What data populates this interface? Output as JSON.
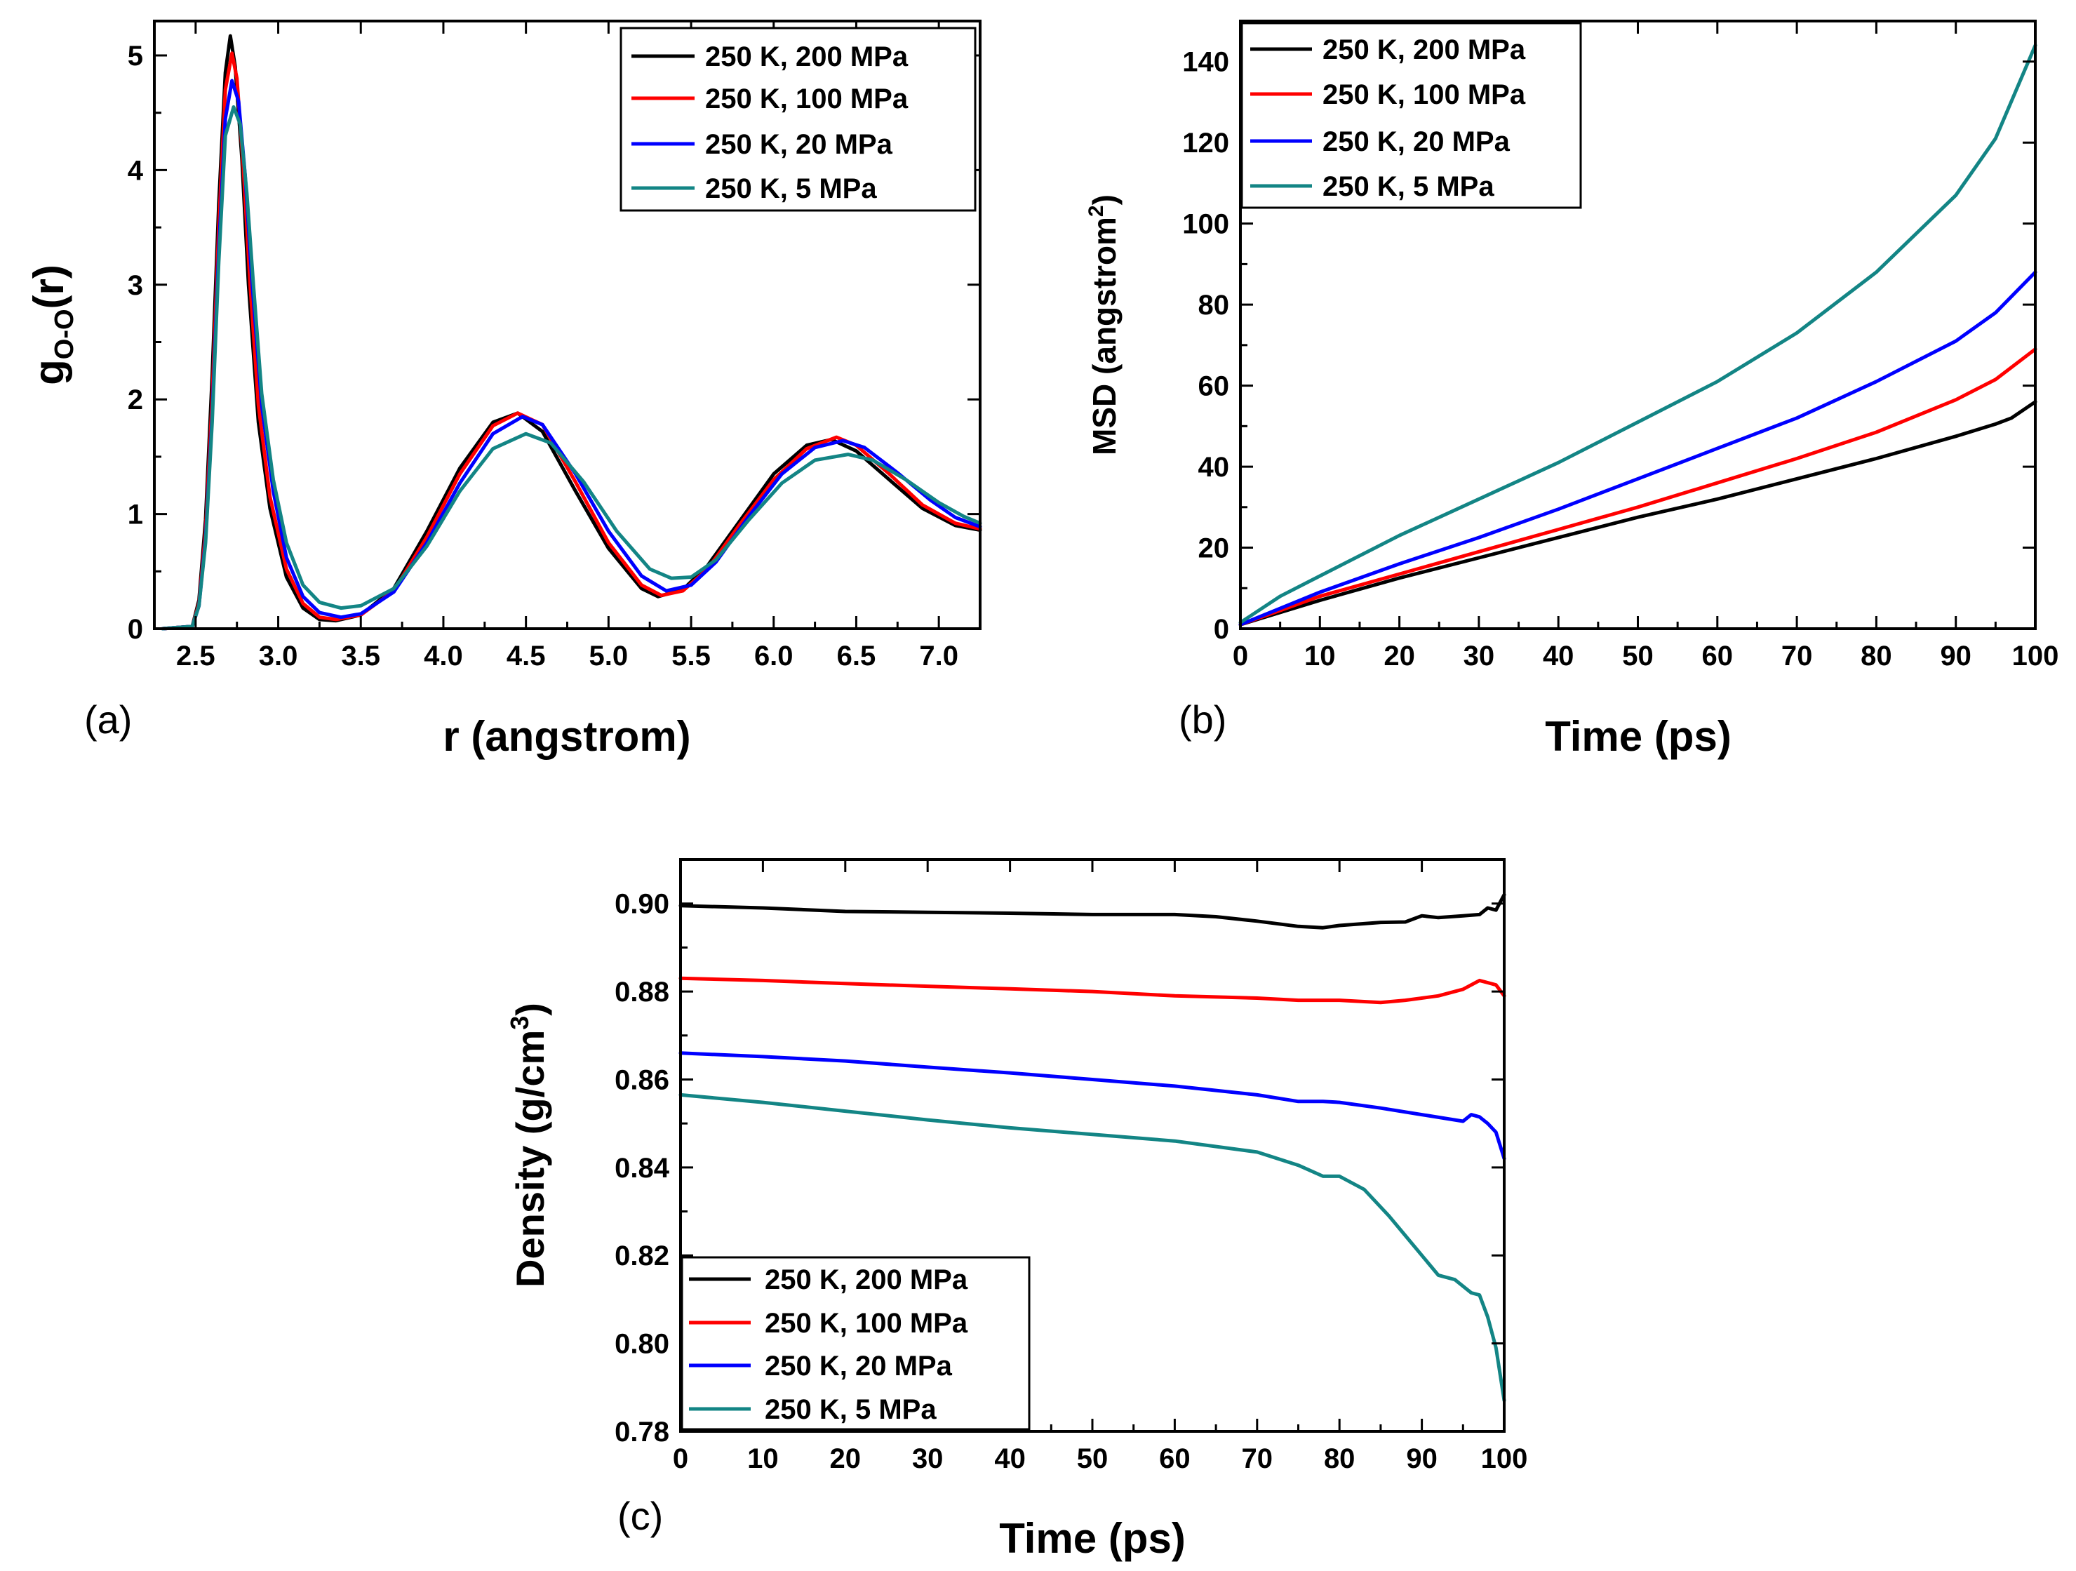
{
  "colors": {
    "s200": "#000000",
    "s100": "#ff0000",
    "s20": "#0000ff",
    "s5": "#138585"
  },
  "chart_data": [
    {
      "id": "a",
      "type": "line",
      "panel_label": "(a)",
      "xlabel": "r (angstrom)",
      "ylabel_main": "g",
      "ylabel_sub": "O-O",
      "ylabel_tail": "(r)",
      "xlim": [
        2.25,
        7.25
      ],
      "ylim": [
        0,
        5.3
      ],
      "xticks": [
        "2.5",
        "3.0",
        "3.5",
        "4.0",
        "4.5",
        "5.0",
        "5.5",
        "6.0",
        "6.5",
        "7.0"
      ],
      "yticks": [
        "0",
        "1",
        "2",
        "3",
        "4",
        "5"
      ],
      "legend_position": "top-right",
      "series": [
        {
          "name": "250 K, 200 MPa",
          "color_key": "s200",
          "x": [
            2.3,
            2.48,
            2.52,
            2.56,
            2.6,
            2.64,
            2.68,
            2.71,
            2.74,
            2.78,
            2.82,
            2.88,
            2.95,
            3.05,
            3.15,
            3.25,
            3.35,
            3.5,
            3.7,
            3.9,
            4.1,
            4.3,
            4.45,
            4.6,
            4.8,
            5.0,
            5.2,
            5.3,
            5.45,
            5.6,
            5.8,
            6.0,
            6.2,
            6.35,
            6.5,
            6.7,
            6.9,
            7.1,
            7.25
          ],
          "y": [
            0,
            0.02,
            0.25,
            0.95,
            2.2,
            3.7,
            4.85,
            5.17,
            4.9,
            4.1,
            3.0,
            1.8,
            1.05,
            0.45,
            0.18,
            0.08,
            0.07,
            0.12,
            0.35,
            0.85,
            1.4,
            1.8,
            1.88,
            1.72,
            1.2,
            0.7,
            0.35,
            0.28,
            0.34,
            0.55,
            0.95,
            1.35,
            1.6,
            1.65,
            1.55,
            1.3,
            1.05,
            0.9,
            0.86
          ]
        },
        {
          "name": "250 K, 100 MPa",
          "color_key": "s100",
          "x": [
            2.3,
            2.48,
            2.52,
            2.56,
            2.6,
            2.64,
            2.68,
            2.72,
            2.75,
            2.79,
            2.83,
            2.88,
            2.95,
            3.05,
            3.15,
            3.25,
            3.35,
            3.5,
            3.7,
            3.9,
            4.1,
            4.3,
            4.45,
            4.6,
            4.8,
            5.0,
            5.2,
            5.32,
            5.45,
            5.6,
            5.8,
            6.0,
            6.2,
            6.38,
            6.5,
            6.7,
            6.9,
            7.1,
            7.25
          ],
          "y": [
            0,
            0.02,
            0.22,
            0.85,
            2.0,
            3.5,
            4.7,
            5.02,
            4.8,
            4.0,
            3.0,
            1.95,
            1.15,
            0.52,
            0.22,
            0.1,
            0.08,
            0.12,
            0.33,
            0.8,
            1.35,
            1.77,
            1.88,
            1.78,
            1.28,
            0.75,
            0.38,
            0.29,
            0.33,
            0.52,
            0.92,
            1.3,
            1.57,
            1.67,
            1.6,
            1.35,
            1.08,
            0.92,
            0.87
          ]
        },
        {
          "name": "250 K, 20 MPa",
          "color_key": "s20",
          "x": [
            2.3,
            2.48,
            2.52,
            2.56,
            2.6,
            2.64,
            2.68,
            2.72,
            2.76,
            2.8,
            2.84,
            2.9,
            2.97,
            3.05,
            3.15,
            3.25,
            3.38,
            3.5,
            3.7,
            3.9,
            4.1,
            4.3,
            4.48,
            4.6,
            4.8,
            5.0,
            5.2,
            5.35,
            5.5,
            5.65,
            5.85,
            6.05,
            6.25,
            6.42,
            6.55,
            6.75,
            6.95,
            7.1,
            7.25
          ],
          "y": [
            0,
            0.02,
            0.2,
            0.78,
            1.85,
            3.3,
            4.45,
            4.78,
            4.6,
            3.95,
            3.05,
            1.95,
            1.2,
            0.62,
            0.28,
            0.14,
            0.1,
            0.13,
            0.32,
            0.75,
            1.27,
            1.7,
            1.85,
            1.78,
            1.35,
            0.85,
            0.46,
            0.33,
            0.38,
            0.58,
            0.98,
            1.35,
            1.58,
            1.64,
            1.58,
            1.36,
            1.12,
            0.97,
            0.89
          ]
        },
        {
          "name": "250 K, 5 MPa",
          "color_key": "s5",
          "x": [
            2.3,
            2.48,
            2.52,
            2.56,
            2.6,
            2.64,
            2.68,
            2.73,
            2.77,
            2.81,
            2.85,
            2.9,
            2.97,
            3.05,
            3.15,
            3.25,
            3.38,
            3.5,
            3.7,
            3.9,
            4.1,
            4.3,
            4.5,
            4.65,
            4.85,
            5.05,
            5.25,
            5.38,
            5.5,
            5.65,
            5.85,
            6.05,
            6.25,
            6.45,
            6.6,
            6.8,
            7.0,
            7.15,
            7.25
          ],
          "y": [
            0,
            0.02,
            0.2,
            0.75,
            1.8,
            3.2,
            4.3,
            4.55,
            4.4,
            3.8,
            3.0,
            2.05,
            1.3,
            0.75,
            0.38,
            0.23,
            0.18,
            0.2,
            0.35,
            0.72,
            1.2,
            1.57,
            1.7,
            1.62,
            1.28,
            0.85,
            0.52,
            0.44,
            0.45,
            0.6,
            0.95,
            1.27,
            1.47,
            1.52,
            1.47,
            1.3,
            1.1,
            0.98,
            0.92
          ]
        }
      ],
      "legend": [
        "250 K, 200 MPa",
        "250 K, 100 MPa",
        "250 K, 20 MPa",
        "250 K, 5 MPa"
      ]
    },
    {
      "id": "b",
      "type": "line",
      "panel_label": "(b)",
      "xlabel": "Time (ps)",
      "ylabel_main": "MSD (angstrom",
      "ylabel_sup": "2",
      "ylabel_tail": ")",
      "xlim": [
        0,
        100
      ],
      "ylim": [
        0,
        150
      ],
      "xticks": [
        "0",
        "10",
        "20",
        "30",
        "40",
        "50",
        "60",
        "70",
        "80",
        "90",
        "100"
      ],
      "yticks": [
        "0",
        "20",
        "40",
        "60",
        "80",
        "100",
        "120",
        "140"
      ],
      "legend_position": "top-left",
      "series": [
        {
          "name": "250 K, 200 MPa",
          "color_key": "s200",
          "x": [
            0,
            5,
            10,
            20,
            30,
            40,
            50,
            60,
            70,
            80,
            90,
            95,
            97,
            100
          ],
          "y": [
            1,
            4,
            7,
            12.5,
            17.5,
            22.5,
            27.5,
            32,
            37,
            42,
            47.5,
            50.5,
            52,
            56
          ]
        },
        {
          "name": "250 K, 100 MPa",
          "color_key": "s100",
          "x": [
            0,
            5,
            10,
            20,
            30,
            40,
            50,
            60,
            70,
            80,
            90,
            95,
            100
          ],
          "y": [
            1,
            4.5,
            8,
            13.5,
            19,
            24.5,
            30,
            36,
            42,
            48.5,
            56.5,
            61.5,
            69
          ]
        },
        {
          "name": "250 K, 20 MPa",
          "color_key": "s20",
          "x": [
            0,
            5,
            10,
            20,
            30,
            40,
            50,
            60,
            70,
            80,
            90,
            95,
            100
          ],
          "y": [
            1,
            5,
            9,
            16,
            22.5,
            29.5,
            37,
            44.5,
            52,
            61,
            71,
            78,
            88
          ]
        },
        {
          "name": "250 K, 5 MPa",
          "color_key": "s5",
          "x": [
            0,
            5,
            10,
            20,
            30,
            40,
            50,
            60,
            70,
            80,
            90,
            95,
            100
          ],
          "y": [
            1.5,
            8,
            13,
            23,
            32,
            41,
            51,
            61,
            73,
            88,
            107,
            121,
            144
          ]
        }
      ],
      "legend": [
        "250 K, 200 MPa",
        "250 K, 100 MPa",
        "250 K, 20 MPa",
        "250 K, 5 MPa"
      ]
    },
    {
      "id": "c",
      "type": "line",
      "panel_label": "(c)",
      "xlabel": "Time (ps)",
      "ylabel_main": "Density (g/cm",
      "ylabel_sup": "3",
      "ylabel_tail": ")",
      "xlim": [
        0,
        100
      ],
      "ylim": [
        0.78,
        0.91
      ],
      "xticks": [
        "0",
        "10",
        "20",
        "30",
        "40",
        "50",
        "60",
        "70",
        "80",
        "90",
        "100"
      ],
      "yticks": [
        "0.78",
        "0.80",
        "0.82",
        "0.84",
        "0.86",
        "0.88",
        "0.90"
      ],
      "legend_position": "bottom-left",
      "series": [
        {
          "name": "250 K, 200 MPa",
          "color_key": "s200",
          "x": [
            0,
            10,
            20,
            30,
            40,
            50,
            60,
            65,
            70,
            75,
            78,
            80,
            85,
            88,
            90,
            92,
            95,
            97,
            98,
            99,
            100
          ],
          "y": [
            0.8995,
            0.899,
            0.8982,
            0.898,
            0.8978,
            0.8975,
            0.8975,
            0.897,
            0.896,
            0.8948,
            0.8945,
            0.895,
            0.8957,
            0.8958,
            0.8972,
            0.8968,
            0.8972,
            0.8975,
            0.899,
            0.8985,
            0.902
          ]
        },
        {
          "name": "250 K, 100 MPa",
          "color_key": "s100",
          "x": [
            0,
            10,
            20,
            30,
            40,
            50,
            60,
            70,
            75,
            80,
            85,
            88,
            92,
            95,
            97,
            98,
            99,
            100
          ],
          "y": [
            0.883,
            0.8825,
            0.8818,
            0.8812,
            0.8806,
            0.88,
            0.879,
            0.8785,
            0.878,
            0.878,
            0.8775,
            0.878,
            0.879,
            0.8805,
            0.8825,
            0.882,
            0.8815,
            0.879
          ]
        },
        {
          "name": "250 K, 20 MPa",
          "color_key": "s20",
          "x": [
            0,
            10,
            20,
            30,
            40,
            50,
            60,
            70,
            75,
            78,
            80,
            85,
            90,
            95,
            96,
            97,
            98,
            99,
            100
          ],
          "y": [
            0.866,
            0.8652,
            0.8642,
            0.8628,
            0.8615,
            0.86,
            0.8585,
            0.8565,
            0.855,
            0.855,
            0.8548,
            0.8535,
            0.852,
            0.8505,
            0.852,
            0.8515,
            0.85,
            0.848,
            0.842
          ]
        },
        {
          "name": "250 K, 5 MPa",
          "color_key": "s5",
          "x": [
            0,
            10,
            20,
            30,
            40,
            50,
            60,
            70,
            75,
            78,
            80,
            83,
            86,
            88,
            90,
            92,
            94,
            96,
            97,
            98,
            99,
            100
          ],
          "y": [
            0.8565,
            0.8548,
            0.8528,
            0.8508,
            0.849,
            0.8475,
            0.846,
            0.8435,
            0.8405,
            0.838,
            0.838,
            0.835,
            0.829,
            0.8245,
            0.82,
            0.8155,
            0.8145,
            0.8115,
            0.811,
            0.806,
            0.799,
            0.787
          ]
        }
      ],
      "legend": [
        "250 K, 200 MPa",
        "250 K, 100 MPa",
        "250 K, 20 MPa",
        "250 K, 5 MPa"
      ]
    }
  ]
}
